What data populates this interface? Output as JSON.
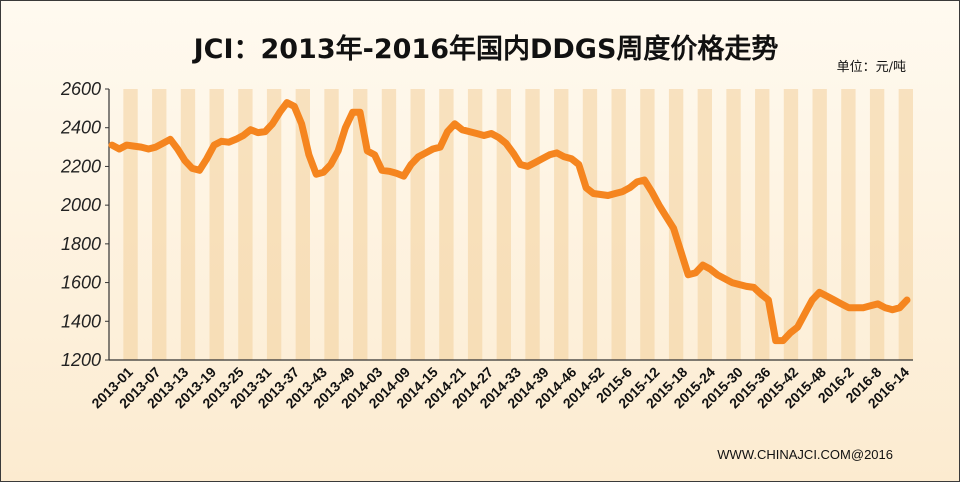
{
  "chart_data": {
    "type": "line",
    "title": "JCI：2013年-2016年国内DDGS周度价格走势",
    "unit": "单位：元/吨",
    "source": "WWW.CHINAJCI.COM@2016",
    "ylim": [
      1200,
      2600
    ],
    "yticks": [
      "2600",
      "2400",
      "2200",
      "2000",
      "1800",
      "1600",
      "1400",
      "1200"
    ],
    "grid": "vertical bands",
    "line_color": "#f5851f",
    "xticks": [
      "2013-01",
      "2013-07",
      "2013-13",
      "2013-19",
      "2013-25",
      "2013-31",
      "2013-37",
      "2013-43",
      "2013-49",
      "2014-03",
      "2014-09",
      "2014-15",
      "2014-21",
      "2014-27",
      "2014-33",
      "2014-39",
      "2014-46",
      "2014-52",
      "2015-6",
      "2015-12",
      "2015-18",
      "2015-24",
      "2015-30",
      "2015-36",
      "2015-42",
      "2015-48",
      "2016-2",
      "2016-8",
      "2016-14"
    ],
    "series": [
      {
        "values": [
          2310,
          2290,
          2310,
          2305,
          2300,
          2290,
          2300,
          2320,
          2340,
          2290,
          2230,
          2190,
          2180,
          2240,
          2310,
          2330,
          2325,
          2340,
          2360,
          2390,
          2375,
          2380,
          2420,
          2480,
          2530,
          2510,
          2420,
          2260,
          2160,
          2170,
          2210,
          2280,
          2400,
          2480,
          2480,
          2280,
          2260,
          2180,
          2175,
          2165,
          2150,
          2210,
          2250,
          2270,
          2290,
          2300,
          2380,
          2420,
          2390,
          2380,
          2370,
          2360,
          2370,
          2350,
          2320,
          2270,
          2210,
          2200,
          2220,
          2240,
          2260,
          2270,
          2250,
          2240,
          2210,
          2090,
          2060,
          2055,
          2050,
          2060,
          2070,
          2090,
          2120,
          2130,
          2070,
          2000,
          1940,
          1880,
          1760,
          1640,
          1650,
          1690,
          1670,
          1640,
          1620,
          1600,
          1590,
          1580,
          1575,
          1540,
          1510,
          1300,
          1300,
          1340,
          1370,
          1440,
          1510,
          1550,
          1530,
          1510,
          1490,
          1470,
          1470,
          1470,
          1480,
          1490,
          1470,
          1460,
          1470,
          1510
        ]
      }
    ]
  }
}
